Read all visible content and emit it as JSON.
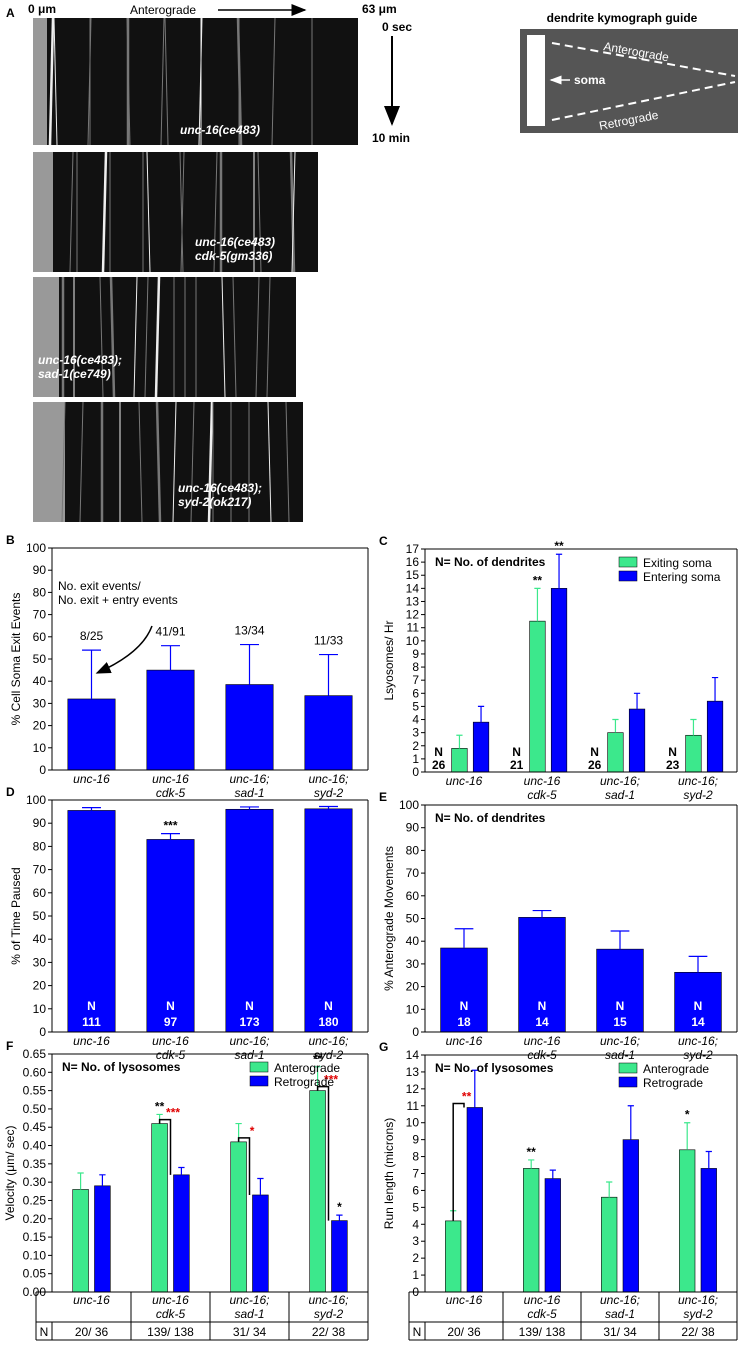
{
  "panel_a": {
    "label": "A",
    "x_start": "0 μm",
    "x_end": "63 μm",
    "direction": "Anterograde",
    "time_start": "0 sec",
    "time_end": "10 min",
    "kymographs": [
      "unc-16(ce483)",
      "unc-16(ce483)\ncdk-5(gm336)",
      "unc-16(ce483);\nsad-1(ce749)",
      "unc-16(ce483);\nsyd-2(ok217)"
    ],
    "guide": {
      "title": "dendrite kymograph guide",
      "soma": "soma",
      "anterograde": "Anterograde",
      "retrograde": "Retrograde"
    }
  },
  "chart_data": [
    {
      "type": "bar",
      "panel": "B",
      "ylabel": "% Cell Soma Exit Events",
      "categories": [
        "unc-16",
        "unc-16\ncdk-5",
        "unc-16;\nsad-1",
        "unc-16;\nsyd-2"
      ],
      "ylim": [
        0,
        100
      ],
      "yticks": [
        0,
        10,
        20,
        30,
        40,
        50,
        60,
        70,
        80,
        90,
        100
      ],
      "series": [
        {
          "color": "#0000ff",
          "values": [
            32,
            45,
            38.5,
            33.5
          ],
          "errors": [
            22,
            11,
            18,
            18.5
          ]
        }
      ],
      "ratio_labels": [
        "8/25",
        "41/91",
        "13/34",
        "11/33"
      ],
      "annotation": "No. exit events/\nNo. exit + entry events"
    },
    {
      "type": "bar",
      "panel": "C",
      "ylabel": "Lsyosomes/ Hr",
      "note": "N= No. of dendrites",
      "legend": "upper right",
      "categories": [
        "unc-16",
        "unc-16\ncdk-5",
        "unc-16;\nsad-1",
        "unc-16;\nsyd-2"
      ],
      "ylim": [
        0,
        17
      ],
      "yticks": [
        0,
        1,
        2,
        3,
        4,
        5,
        6,
        7,
        8,
        9,
        10,
        11,
        12,
        13,
        14,
        15,
        16,
        17
      ],
      "n_label": "N",
      "n": [
        26,
        21,
        26,
        23
      ],
      "series": [
        {
          "name": "Exiting soma",
          "color": "#3ce88c",
          "values": [
            1.8,
            11.5,
            3.0,
            2.8
          ],
          "errors": [
            1.0,
            2.5,
            1.0,
            1.2
          ],
          "stars": [
            null,
            "**",
            null,
            null
          ]
        },
        {
          "name": "Entering soma",
          "color": "#0000ff",
          "values": [
            3.8,
            14.0,
            4.8,
            5.4
          ],
          "errors": [
            1.2,
            2.6,
            1.2,
            1.8
          ],
          "stars": [
            null,
            "**",
            null,
            null
          ]
        }
      ]
    },
    {
      "type": "bar",
      "panel": "D",
      "ylabel": "% of Time Paused",
      "categories": [
        "unc-16",
        "unc-16\ncdk-5",
        "unc-16;\nsad-1",
        "unc-16;\nsyd-2"
      ],
      "ylim": [
        0,
        100
      ],
      "yticks": [
        0,
        10,
        20,
        30,
        40,
        50,
        60,
        70,
        80,
        90,
        100
      ],
      "n_label": "N",
      "n": [
        111,
        97,
        173,
        180
      ],
      "series": [
        {
          "color": "#0000ff",
          "values": [
            95.5,
            83,
            96,
            96.2
          ],
          "errors": [
            1.2,
            2.5,
            1,
            1
          ],
          "stars": [
            null,
            "***",
            null,
            null
          ]
        }
      ]
    },
    {
      "type": "bar",
      "panel": "E",
      "ylabel": "% Anterograde Movements",
      "note": "N= No. of dendrites",
      "categories": [
        "unc-16",
        "unc-16\ncdk-5",
        "unc-16;\nsad-1",
        "unc-16;\nsyd-2"
      ],
      "ylim": [
        0,
        100
      ],
      "yticks": [
        0,
        10,
        20,
        30,
        40,
        50,
        60,
        70,
        80,
        90,
        100
      ],
      "n_label": "N",
      "n": [
        18,
        14,
        15,
        14
      ],
      "series": [
        {
          "color": "#0000ff",
          "values": [
            37,
            50.5,
            36.5,
            26.3
          ],
          "errors": [
            8.5,
            3,
            8,
            7
          ]
        }
      ]
    },
    {
      "type": "bar",
      "panel": "F",
      "ylabel": "Velocity (μm/ sec)",
      "note": "N= No. of lysosomes",
      "legend": "upper right",
      "categories": [
        "unc-16",
        "unc-16\ncdk-5",
        "unc-16;\nsad-1",
        "unc-16;\nsyd-2"
      ],
      "ylim": [
        0,
        0.65
      ],
      "yticks": [
        {
          "value": 0,
          "label": "0.00"
        },
        {
          "value": 0.05,
          "label": "0.05"
        },
        {
          "value": 0.1,
          "label": "0.10"
        },
        {
          "value": 0.15,
          "label": "0.15"
        },
        {
          "value": 0.2,
          "label": "0.20"
        },
        {
          "value": 0.25,
          "label": "0.25"
        },
        {
          "value": 0.3,
          "label": "0.30"
        },
        {
          "value": 0.35,
          "label": "0.35"
        },
        {
          "value": 0.4,
          "label": "0.40"
        },
        {
          "value": 0.45,
          "label": "0.45"
        },
        {
          "value": 0.5,
          "label": "0.50"
        },
        {
          "value": 0.55,
          "label": "0.55"
        },
        {
          "value": 0.6,
          "label": "0.60"
        },
        {
          "value": 0.65,
          "label": "0.65"
        }
      ],
      "table_label": "N",
      "n_labels": [
        "20/ 36",
        "139/ 138",
        "31/ 34",
        "22/ 38"
      ],
      "comparison": [
        null,
        "***",
        "*",
        "***"
      ],
      "comparison_color": "#e00000",
      "series": [
        {
          "name": "Anterograde",
          "color": "#3ce88c",
          "values": [
            0.28,
            0.46,
            0.41,
            0.55
          ],
          "errors": [
            0.045,
            0.025,
            0.05,
            0.065
          ],
          "stars": [
            null,
            "**",
            null,
            "**"
          ]
        },
        {
          "name": "Retrograde",
          "color": "#0000ff",
          "values": [
            0.29,
            0.32,
            0.265,
            0.195
          ],
          "errors": [
            0.03,
            0.02,
            0.045,
            0.015
          ],
          "stars": [
            null,
            null,
            null,
            "*"
          ]
        }
      ]
    },
    {
      "type": "bar",
      "panel": "G",
      "ylabel": "Run length (microns)",
      "note": "N= No. of lysosomes",
      "legend": "upper right",
      "categories": [
        "unc-16",
        "unc-16\ncdk-5",
        "unc-16;\nsad-1",
        "unc-16;\nsyd-2"
      ],
      "ylim": [
        0,
        14
      ],
      "yticks": [
        0,
        1,
        2,
        3,
        4,
        5,
        6,
        7,
        8,
        9,
        10,
        11,
        12,
        13,
        14
      ],
      "table_label": "N",
      "n_labels": [
        "20/ 36",
        "139/ 138",
        "31/ 34",
        "22/ 38"
      ],
      "comparison": [
        "**",
        null,
        null,
        null
      ],
      "comparison_color": "#e00000",
      "series": [
        {
          "name": "Anterograde",
          "color": "#3ce88c",
          "values": [
            4.2,
            7.3,
            5.6,
            8.4
          ],
          "errors": [
            0.6,
            0.5,
            0.9,
            1.6
          ],
          "stars": [
            null,
            "**",
            null,
            "*"
          ]
        },
        {
          "name": "Retrograde",
          "color": "#0000ff",
          "values": [
            10.9,
            6.7,
            9.0,
            7.3
          ],
          "errors": [
            2.2,
            0.5,
            2.0,
            1.0
          ]
        }
      ]
    }
  ]
}
